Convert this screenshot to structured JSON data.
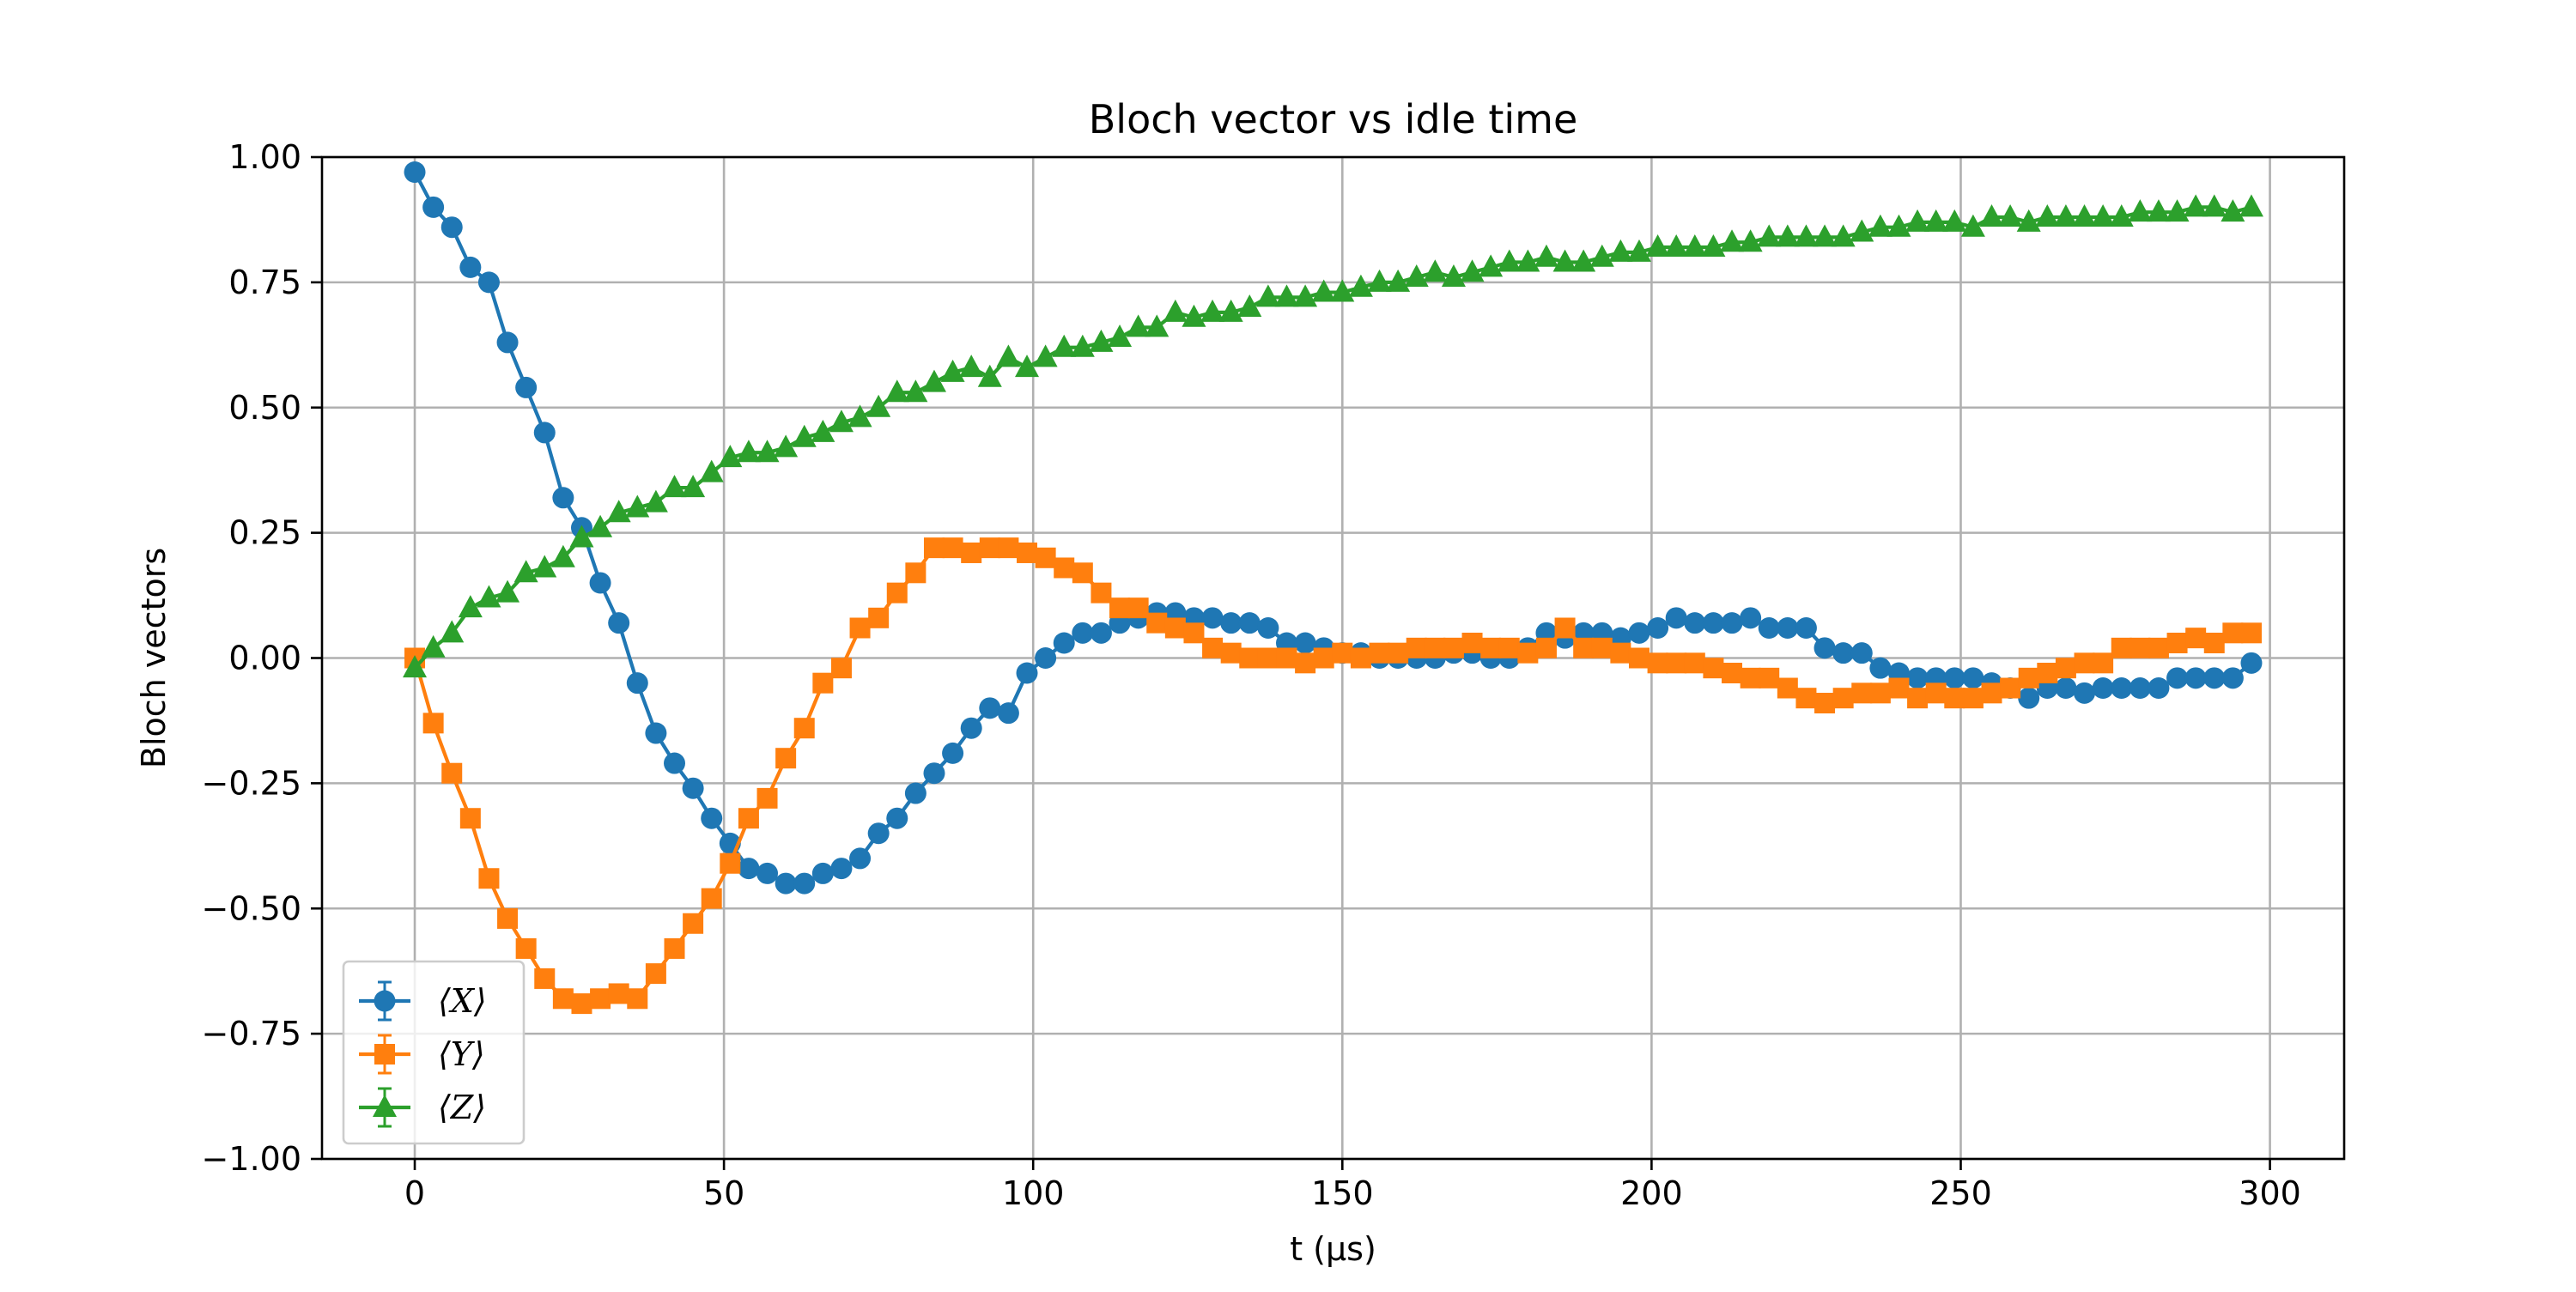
{
  "chart_data": {
    "type": "line",
    "title": "Bloch vector vs idle time",
    "xlabel": "t (μs)",
    "ylabel": "Bloch vectors",
    "xlim": [
      -15,
      312
    ],
    "ylim": [
      -1.0,
      1.0
    ],
    "x_ticks": [
      0,
      50,
      100,
      150,
      200,
      250,
      300
    ],
    "x_tick_labels": [
      "0",
      "50",
      "100",
      "150",
      "200",
      "250",
      "300"
    ],
    "y_ticks": [
      -1.0,
      -0.75,
      -0.5,
      -0.25,
      0.0,
      0.25,
      0.5,
      0.75,
      1.0
    ],
    "y_tick_labels": [
      "−1.00",
      "−0.75",
      "−0.50",
      "−0.25",
      "0.00",
      "0.25",
      "0.50",
      "0.75",
      "1.00"
    ],
    "grid": true,
    "legend_position": "lower-left",
    "x": [
      0,
      3,
      6,
      9,
      12,
      15,
      18,
      21,
      24,
      27,
      30,
      33,
      36,
      39,
      42,
      45,
      48,
      51,
      54,
      57,
      60,
      63,
      66,
      69,
      72,
      75,
      78,
      81,
      84,
      87,
      90,
      93,
      96,
      99,
      102,
      105,
      108,
      111,
      114,
      117,
      120,
      123,
      126,
      129,
      132,
      135,
      138,
      141,
      144,
      147,
      150,
      153,
      156,
      159,
      162,
      165,
      168,
      171,
      174,
      177,
      180,
      183,
      186,
      189,
      192,
      195,
      198,
      201,
      204,
      207,
      210,
      213,
      216,
      219,
      222,
      225,
      228,
      231,
      234,
      237,
      240,
      243,
      246,
      249,
      252,
      255,
      258,
      261,
      264,
      267,
      270,
      273,
      276,
      279,
      282,
      285,
      288,
      291,
      294,
      297
    ],
    "series": [
      {
        "name": "⟨X⟩",
        "color": "#1f77b4",
        "marker": "circle",
        "values": [
          0.97,
          0.9,
          0.86,
          0.78,
          0.75,
          0.63,
          0.54,
          0.45,
          0.32,
          0.26,
          0.15,
          0.07,
          -0.05,
          -0.15,
          -0.21,
          -0.26,
          -0.32,
          -0.37,
          -0.42,
          -0.43,
          -0.45,
          -0.45,
          -0.43,
          -0.42,
          -0.4,
          -0.35,
          -0.32,
          -0.27,
          -0.23,
          -0.19,
          -0.14,
          -0.1,
          -0.11,
          -0.03,
          0.0,
          0.03,
          0.05,
          0.05,
          0.07,
          0.08,
          0.09,
          0.09,
          0.08,
          0.08,
          0.07,
          0.07,
          0.06,
          0.03,
          0.03,
          0.02,
          0.01,
          0.01,
          0.0,
          0.0,
          0.0,
          0.0,
          0.01,
          0.01,
          0.0,
          0.0,
          0.02,
          0.05,
          0.04,
          0.05,
          0.05,
          0.04,
          0.05,
          0.06,
          0.08,
          0.07,
          0.07,
          0.07,
          0.08,
          0.06,
          0.06,
          0.06,
          0.02,
          0.01,
          0.01,
          -0.02,
          -0.03,
          -0.04,
          -0.04,
          -0.04,
          -0.04,
          -0.05,
          -0.06,
          -0.08,
          -0.06,
          -0.06,
          -0.07,
          -0.06,
          -0.06,
          -0.06,
          -0.06,
          -0.04,
          -0.04,
          -0.04,
          -0.04,
          -0.01
        ]
      },
      {
        "name": "⟨Y⟩",
        "color": "#ff7f0e",
        "marker": "square",
        "values": [
          0.0,
          -0.13,
          -0.23,
          -0.32,
          -0.44,
          -0.52,
          -0.58,
          -0.64,
          -0.68,
          -0.69,
          -0.68,
          -0.67,
          -0.68,
          -0.63,
          -0.58,
          -0.53,
          -0.48,
          -0.41,
          -0.32,
          -0.28,
          -0.2,
          -0.14,
          -0.05,
          -0.02,
          0.06,
          0.08,
          0.13,
          0.17,
          0.22,
          0.22,
          0.21,
          0.22,
          0.22,
          0.21,
          0.2,
          0.18,
          0.17,
          0.13,
          0.1,
          0.1,
          0.07,
          0.06,
          0.05,
          0.02,
          0.01,
          0.0,
          0.0,
          0.0,
          -0.01,
          0.0,
          0.01,
          0.0,
          0.01,
          0.01,
          0.02,
          0.02,
          0.02,
          0.03,
          0.02,
          0.02,
          0.01,
          0.02,
          0.06,
          0.02,
          0.02,
          0.01,
          0.0,
          -0.01,
          -0.01,
          -0.01,
          -0.02,
          -0.03,
          -0.04,
          -0.04,
          -0.06,
          -0.08,
          -0.09,
          -0.08,
          -0.07,
          -0.07,
          -0.06,
          -0.08,
          -0.07,
          -0.08,
          -0.08,
          -0.07,
          -0.06,
          -0.04,
          -0.03,
          -0.02,
          -0.01,
          -0.01,
          0.02,
          0.02,
          0.02,
          0.03,
          0.04,
          0.03,
          0.05,
          0.05
        ]
      },
      {
        "name": "⟨Z⟩",
        "color": "#2ca02c",
        "marker": "triangle",
        "values": [
          -0.02,
          0.02,
          0.05,
          0.1,
          0.12,
          0.13,
          0.17,
          0.18,
          0.2,
          0.24,
          0.26,
          0.29,
          0.3,
          0.31,
          0.34,
          0.34,
          0.37,
          0.4,
          0.41,
          0.41,
          0.42,
          0.44,
          0.45,
          0.47,
          0.48,
          0.5,
          0.53,
          0.53,
          0.55,
          0.57,
          0.58,
          0.56,
          0.6,
          0.58,
          0.6,
          0.62,
          0.62,
          0.63,
          0.64,
          0.66,
          0.66,
          0.69,
          0.68,
          0.69,
          0.69,
          0.7,
          0.72,
          0.72,
          0.72,
          0.73,
          0.73,
          0.74,
          0.75,
          0.75,
          0.76,
          0.77,
          0.76,
          0.77,
          0.78,
          0.79,
          0.79,
          0.8,
          0.79,
          0.79,
          0.8,
          0.81,
          0.81,
          0.82,
          0.82,
          0.82,
          0.82,
          0.83,
          0.83,
          0.84,
          0.84,
          0.84,
          0.84,
          0.84,
          0.85,
          0.86,
          0.86,
          0.87,
          0.87,
          0.87,
          0.86,
          0.88,
          0.88,
          0.87,
          0.88,
          0.88,
          0.88,
          0.88,
          0.88,
          0.89,
          0.89,
          0.89,
          0.9,
          0.9,
          0.89,
          0.9
        ]
      }
    ]
  }
}
